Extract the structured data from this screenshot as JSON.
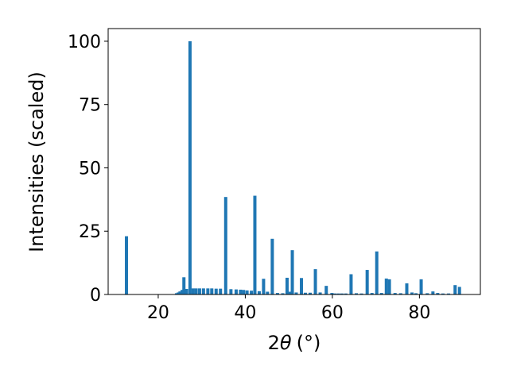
{
  "chart_data": {
    "type": "bar",
    "xlabel": "2θ (°)",
    "xlabel_main": "2",
    "xlabel_theta": "θ",
    "xlabel_unit": "(°)",
    "ylabel": "Intensities (scaled)",
    "xlim": [
      8.5,
      94
    ],
    "ylim": [
      0,
      105
    ],
    "xticks": [
      20,
      40,
      60,
      80
    ],
    "yticks": [
      0,
      25,
      50,
      75,
      100
    ],
    "grid": false,
    "bar_color": "#1f77b4",
    "x": [
      12.7,
      24.2,
      24.6,
      25.0,
      25.5,
      25.9,
      26.5,
      27.3,
      28.0,
      28.7,
      29.5,
      30.4,
      31.4,
      32.3,
      33.3,
      34.3,
      35.5,
      36.7,
      37.9,
      38.9,
      39.6,
      40.4,
      41.4,
      42.2,
      43.2,
      44.2,
      45.1,
      46.2,
      47.4,
      48.6,
      49.6,
      50.3,
      50.8,
      51.7,
      52.9,
      53.8,
      54.9,
      56.1,
      57.2,
      58.6,
      59.9,
      60.6,
      61.4,
      62.2,
      63.1,
      64.3,
      65.5,
      66.7,
      68.0,
      69.1,
      70.2,
      71.3,
      72.4,
      73.1,
      74.4,
      75.7,
      77.1,
      78.3,
      79.2,
      80.4,
      81.8,
      83.1,
      84.2,
      85.4,
      86.7,
      88.2,
      89.2
    ],
    "values": [
      23,
      0.5,
      0.8,
      1.2,
      1.8,
      6.8,
      2.2,
      100,
      2.4,
      2.4,
      2.4,
      2.4,
      2.4,
      2.4,
      2.3,
      2.3,
      38.5,
      2.1,
      2.0,
      1.9,
      1.8,
      1.6,
      1.5,
      39,
      1.3,
      6.2,
      1.1,
      22,
      0.6,
      0.5,
      6.6,
      1.1,
      17.5,
      0.8,
      6.5,
      0.7,
      0.7,
      10,
      0.8,
      3.4,
      0.6,
      0.4,
      0.4,
      0.4,
      0.4,
      8.0,
      0.5,
      0.4,
      9.7,
      0.6,
      17,
      0.6,
      6.3,
      6.0,
      0.6,
      0.5,
      4.4,
      0.8,
      0.5,
      6.0,
      0.5,
      1.2,
      0.6,
      0.4,
      0.4,
      3.7,
      3.0
    ]
  }
}
